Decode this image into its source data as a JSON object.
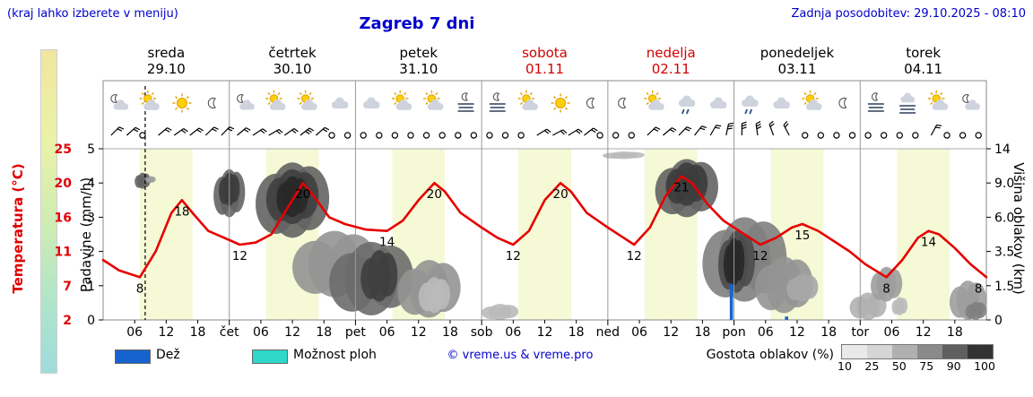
{
  "header": {
    "hint": "(kraj lahko izberete v meniju)",
    "title": "Zagreb 7 dni",
    "updated": "Zadnja posodobitev: 29.10.2025 - 08:10"
  },
  "axes": {
    "temp_title": "Temperatura (°C)",
    "precip_title": "Padavine (mm/h)",
    "cloud_title": "Višina oblakov (km)",
    "temp_ticks": [
      "25",
      "20",
      "16",
      "11",
      "7",
      "2"
    ],
    "precip_ticks": [
      "5",
      "4",
      "3",
      "2",
      "1",
      "0"
    ],
    "cloud_ticks": [
      "14",
      "9.0",
      "6.0",
      "3.5",
      "1.5",
      "0"
    ]
  },
  "legend": {
    "rain_label": "Dež",
    "showers_label": "Možnost ploh",
    "copyright": "© vreme.us & vreme.pro",
    "cloud_density_label": "Gostota oblakov (%)",
    "density_ticks": [
      "10",
      "25",
      "50",
      "75",
      "90",
      "100"
    ],
    "rain_color": "#1663cf",
    "showers_color": "#2fd8c8"
  },
  "chart_data": {
    "type": "line",
    "title": "Zagreb 7 dni",
    "x_range_hours": [
      0,
      168
    ],
    "daylight_hours": [
      7,
      17
    ],
    "now_hour": 8,
    "days": [
      {
        "name": "sreda",
        "date": "29.10",
        "color": "#000000"
      },
      {
        "name": "četrtek",
        "date": "30.10",
        "color": "#000000"
      },
      {
        "name": "petek",
        "date": "31.10",
        "color": "#000000"
      },
      {
        "name": "sobota",
        "date": "01.11",
        "color": "#d40000"
      },
      {
        "name": "nedelja",
        "date": "02.11",
        "color": "#d40000"
      },
      {
        "name": "ponedeljek",
        "date": "03.11",
        "color": "#000000"
      },
      {
        "name": "torek",
        "date": "04.11",
        "color": "#000000"
      }
    ],
    "day_abbrevs": [
      "čet",
      "pet",
      "sob",
      "ned",
      "pon",
      "tor"
    ],
    "hour_ticks": [
      6,
      12,
      18
    ],
    "temp_axis_anchors": [
      [
        2,
        0
      ],
      [
        7,
        1
      ],
      [
        11,
        2
      ],
      [
        16,
        3
      ],
      [
        20,
        4
      ],
      [
        25,
        5
      ]
    ],
    "km_axis_anchors": [
      [
        0,
        0
      ],
      [
        1.5,
        1
      ],
      [
        3.5,
        2
      ],
      [
        6,
        3
      ],
      [
        9,
        4
      ],
      [
        14,
        5
      ]
    ],
    "daylight_color": "#f5f9d5",
    "temperature": {
      "color": "#e60000",
      "points": [
        [
          0,
          10
        ],
        [
          3,
          8.8
        ],
        [
          7,
          8
        ],
        [
          10,
          11
        ],
        [
          13,
          16.5
        ],
        [
          15,
          18
        ],
        [
          17,
          16.5
        ],
        [
          20,
          14
        ],
        [
          23,
          13
        ],
        [
          26,
          12
        ],
        [
          29,
          12.3
        ],
        [
          32,
          13.5
        ],
        [
          35,
          17
        ],
        [
          38,
          20
        ],
        [
          40,
          18.5
        ],
        [
          43,
          16
        ],
        [
          46,
          15
        ],
        [
          50,
          14.2
        ],
        [
          54,
          14
        ],
        [
          57,
          15.5
        ],
        [
          60,
          18
        ],
        [
          63,
          20
        ],
        [
          65,
          19
        ],
        [
          68,
          16.5
        ],
        [
          72,
          14.5
        ],
        [
          75,
          13
        ],
        [
          78,
          12
        ],
        [
          81,
          14
        ],
        [
          84,
          18
        ],
        [
          87,
          20
        ],
        [
          89,
          19
        ],
        [
          92,
          16.5
        ],
        [
          96,
          14.5
        ],
        [
          99,
          13
        ],
        [
          101,
          12
        ],
        [
          104,
          14.5
        ],
        [
          107,
          18.5
        ],
        [
          110,
          21
        ],
        [
          112,
          20
        ],
        [
          115,
          17.5
        ],
        [
          118,
          15.5
        ],
        [
          120,
          14.5
        ],
        [
          123,
          13
        ],
        [
          125,
          12
        ],
        [
          128,
          13
        ],
        [
          131,
          14.5
        ],
        [
          133,
          15
        ],
        [
          136,
          14
        ],
        [
          139,
          12.5
        ],
        [
          142,
          11
        ],
        [
          145,
          9.5
        ],
        [
          149,
          8
        ],
        [
          152,
          10
        ],
        [
          155,
          13
        ],
        [
          157,
          14
        ],
        [
          159,
          13.5
        ],
        [
          162,
          11.5
        ],
        [
          165,
          9.5
        ],
        [
          168,
          8
        ]
      ]
    },
    "temp_labels": [
      [
        7,
        8
      ],
      [
        15,
        18
      ],
      [
        26,
        12
      ],
      [
        38,
        20
      ],
      [
        54,
        14
      ],
      [
        63,
        20
      ],
      [
        78,
        12
      ],
      [
        87,
        20
      ],
      [
        101,
        12
      ],
      [
        110,
        21
      ],
      [
        125,
        12
      ],
      [
        133,
        15
      ],
      [
        149,
        8
      ],
      [
        157,
        14
      ],
      [
        166.5,
        8
      ]
    ],
    "precip_bars": [
      [
        119.5,
        1.05
      ],
      [
        130,
        0.1
      ]
    ],
    "clouds": [
      [
        6,
        9,
        8.5,
        10.5,
        70
      ],
      [
        8,
        10,
        9,
        10,
        40
      ],
      [
        21,
        27,
        6,
        11,
        70
      ],
      [
        22,
        26,
        7,
        10.5,
        90
      ],
      [
        29,
        43,
        4.5,
        12,
        70
      ],
      [
        31,
        41,
        5.5,
        11,
        88
      ],
      [
        33,
        39,
        6,
        10,
        100
      ],
      [
        36,
        52,
        1,
        5,
        45
      ],
      [
        43,
        59,
        0.2,
        4.2,
        65
      ],
      [
        49,
        56,
        0.8,
        3.6,
        88
      ],
      [
        56,
        68,
        0.1,
        3,
        45
      ],
      [
        60,
        66,
        0.3,
        2,
        25
      ],
      [
        72,
        79,
        0,
        0.7,
        25
      ],
      [
        95,
        103,
        12.5,
        13.6,
        25
      ],
      [
        105,
        117,
        6,
        12.5,
        70
      ],
      [
        107,
        115,
        7,
        12,
        90
      ],
      [
        114,
        130,
        0.8,
        6,
        55
      ],
      [
        117,
        124,
        1.2,
        5,
        82
      ],
      [
        118,
        122,
        1.5,
        4.5,
        100
      ],
      [
        124,
        135,
        0.3,
        3.2,
        45
      ],
      [
        130,
        136,
        0.8,
        2.2,
        35
      ],
      [
        142,
        149,
        0,
        1.2,
        30
      ],
      [
        146,
        152,
        0.8,
        2.6,
        40
      ],
      [
        150,
        153,
        0.2,
        1,
        25
      ],
      [
        161,
        168,
        0,
        1.8,
        40
      ],
      [
        164,
        168,
        0,
        0.8,
        55
      ]
    ],
    "icons": [
      [
        3,
        "moon-cloud"
      ],
      [
        9,
        "cloud-sun"
      ],
      [
        15,
        "sun"
      ],
      [
        21,
        "moon"
      ],
      [
        27,
        "moon-cloud"
      ],
      [
        33,
        "cloud-sun"
      ],
      [
        39,
        "cloud-sun"
      ],
      [
        45,
        "cloud"
      ],
      [
        51,
        "cloud"
      ],
      [
        57,
        "cloud-sun"
      ],
      [
        63,
        "cloud-sun"
      ],
      [
        69,
        "fog-moon"
      ],
      [
        75,
        "fog-moon"
      ],
      [
        81,
        "cloud-sun"
      ],
      [
        87,
        "sun"
      ],
      [
        93,
        "moon"
      ],
      [
        99,
        "moon"
      ],
      [
        105,
        "cloud-sun"
      ],
      [
        111,
        "cloud-drizzle"
      ],
      [
        117,
        "cloud"
      ],
      [
        123,
        "cloud-drizzle"
      ],
      [
        129,
        "cloud"
      ],
      [
        135,
        "cloud-sun"
      ],
      [
        141,
        "moon"
      ],
      [
        147,
        "fog-moon"
      ],
      [
        153,
        "cloud-fog"
      ],
      [
        159,
        "cloud-sun"
      ],
      [
        165,
        "moon-cloud"
      ]
    ],
    "winds": [
      [
        1.5,
        "b1",
        45
      ],
      [
        4.5,
        "b1",
        48
      ],
      [
        7.5,
        "calm",
        0
      ],
      [
        10.5,
        "b1",
        50
      ],
      [
        13.5,
        "b1",
        55
      ],
      [
        16.5,
        "b1",
        52
      ],
      [
        19.5,
        "b1",
        46
      ],
      [
        22.5,
        "b1",
        44
      ],
      [
        25.5,
        "b1",
        50
      ],
      [
        28.5,
        "b1",
        56
      ],
      [
        31.5,
        "b1",
        60
      ],
      [
        34.5,
        "b1",
        55
      ],
      [
        37.5,
        "b2",
        52
      ],
      [
        40.5,
        "b1",
        48
      ],
      [
        43.5,
        "calm",
        0
      ],
      [
        46.5,
        "calm",
        0
      ],
      [
        49.5,
        "calm",
        0
      ],
      [
        52.5,
        "calm",
        0
      ],
      [
        55.5,
        "calm",
        0
      ],
      [
        58.5,
        "calm",
        0
      ],
      [
        61.5,
        "calm",
        0
      ],
      [
        64.5,
        "calm",
        0
      ],
      [
        67.5,
        "calm",
        0
      ],
      [
        70.5,
        "calm",
        0
      ],
      [
        73.5,
        "calm",
        0
      ],
      [
        76.5,
        "calm",
        0
      ],
      [
        79.5,
        "calm",
        0
      ],
      [
        82.5,
        "b1",
        58
      ],
      [
        85.5,
        "b1",
        62
      ],
      [
        88.5,
        "b1",
        58
      ],
      [
        91.5,
        "b1",
        52
      ],
      [
        94.5,
        "calm",
        0
      ],
      [
        97.5,
        "calm",
        0
      ],
      [
        100.5,
        "calm",
        0
      ],
      [
        103.5,
        "b1",
        46
      ],
      [
        106.5,
        "b1",
        50
      ],
      [
        109.5,
        "b1",
        44
      ],
      [
        112.5,
        "b1",
        38
      ],
      [
        115.5,
        "b1",
        30
      ],
      [
        118.5,
        "b2",
        12
      ],
      [
        121.5,
        "b2",
        0
      ],
      [
        124.5,
        "b2",
        352
      ],
      [
        127.5,
        "b1",
        340
      ],
      [
        130.5,
        "b1",
        332
      ],
      [
        133.5,
        "calm",
        0
      ],
      [
        136.5,
        "calm",
        0
      ],
      [
        139.5,
        "calm",
        0
      ],
      [
        142.5,
        "calm",
        0
      ],
      [
        145.5,
        "calm",
        0
      ],
      [
        148.5,
        "calm",
        0
      ],
      [
        151.5,
        "calm",
        0
      ],
      [
        154.5,
        "calm",
        0
      ],
      [
        157.5,
        "b1",
        28
      ],
      [
        160.5,
        "calm",
        0
      ],
      [
        163.5,
        "calm",
        0
      ],
      [
        166.5,
        "calm",
        0
      ]
    ]
  }
}
